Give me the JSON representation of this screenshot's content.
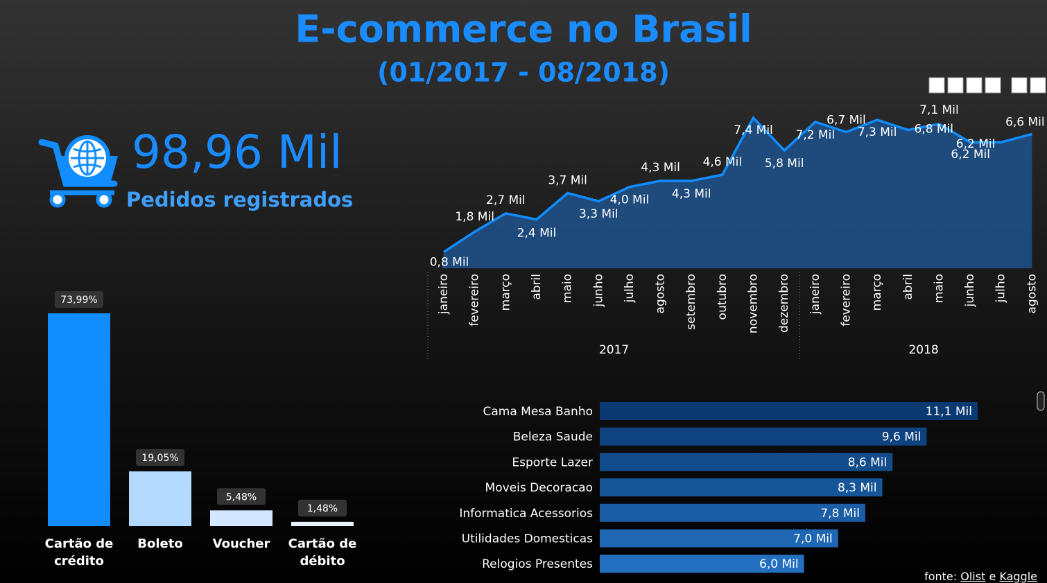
{
  "header": {
    "title": "E-commerce no Brasil",
    "subtitle": "(01/2017 - 08/2018)"
  },
  "kpi": {
    "value": "98,96 Mil",
    "label": "Pedidos registrados"
  },
  "chart_data": [
    {
      "type": "bar",
      "categories": [
        "Cartão de crédito",
        "Boleto",
        "Voucher",
        "Cartão de débito"
      ],
      "values": [
        73.99,
        19.05,
        5.48,
        1.48
      ],
      "value_labels": [
        "73,99%",
        "19,05%",
        "5,48%",
        "1,48%"
      ],
      "colors": [
        "#118dff",
        "#b3d9ff",
        "#d3e8ff",
        "#e6f2ff"
      ]
    },
    {
      "type": "area",
      "color": "#118dff",
      "fill": "#1e4f86",
      "groups": [
        {
          "label": "2017",
          "categories": [
            "janeiro",
            "fevereiro",
            "março",
            "abril",
            "maio",
            "junho",
            "julho",
            "agosto",
            "setembro",
            "outubro",
            "novembro",
            "dezembro"
          ],
          "values": [
            0.8,
            1.8,
            2.7,
            2.4,
            3.7,
            3.3,
            4.0,
            4.3,
            4.3,
            4.6,
            7.4,
            5.8
          ],
          "value_labels": [
            "0,8 Mil",
            "1,8 Mil",
            "2,7 Mil",
            "2,4 Mil",
            "3,7 Mil",
            "3,3 Mil",
            "4,0 Mil",
            "4,3 Mil",
            "4,3 Mil",
            "4,6 Mil",
            "7,4 Mil",
            "5,8 Mil"
          ]
        },
        {
          "label": "2018",
          "categories": [
            "janeiro",
            "fevereiro",
            "março",
            "abril",
            "maio",
            "junho",
            "julho",
            "agosto"
          ],
          "values": [
            7.2,
            6.7,
            7.3,
            6.8,
            7.1,
            6.2,
            6.2,
            6.6
          ],
          "value_labels": [
            "7,2 Mil",
            "6,7 Mil",
            "7,3 Mil",
            "6,8 Mil",
            "7,1 Mil",
            "6,2 Mil",
            "6,2 Mil",
            "6,6 Mil"
          ]
        }
      ]
    },
    {
      "type": "hbar",
      "categories": [
        "Cama Mesa Banho",
        "Beleza Saude",
        "Esporte Lazer",
        "Moveis Decoracao",
        "Informatica Acessorios",
        "Utilidades Domesticas",
        "Relogios Presentes"
      ],
      "values": [
        11.1,
        9.6,
        8.6,
        8.3,
        7.8,
        7.0,
        6.0
      ],
      "value_labels": [
        "11,1 Mil",
        "9,6 Mil",
        "8,6 Mil",
        "8,3 Mil",
        "7,8 Mil",
        "7,0 Mil",
        "6,0 Mil"
      ],
      "colors": [
        "#0b3a72",
        "#0f437f",
        "#134c8c",
        "#175599",
        "#1b5ea6",
        "#1f67b3",
        "#2370c0"
      ]
    }
  ],
  "footer": {
    "prefix": "fonte:",
    "links": [
      "Olist",
      "Kaggle"
    ],
    "joiner": "e"
  }
}
